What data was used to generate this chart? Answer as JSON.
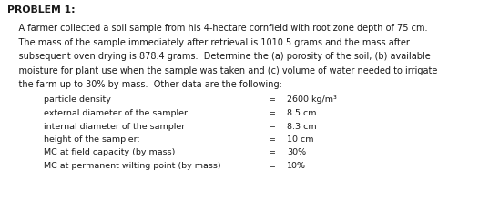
{
  "title": "PROBLEM 1:",
  "lines": [
    "    A farmer collected a soil sample from his 4-hectare cornfield with root zone depth of 75 cm.",
    "    The mass of the sample immediately after retrieval is 1010.5 grams and the mass after",
    "    subsequent oven drying is 878.4 grams.  Determine the (a) porosity of the soil, (b) available",
    "    moisture for plant use when the sample was taken and (c) volume of water needed to irrigate",
    "    the farm up to 30% by mass.  Other data are the following:"
  ],
  "table_rows": [
    [
      "particle density",
      "=",
      "2600 kg/m³"
    ],
    [
      "external diameter of the sampler",
      "=",
      "8.5 cm"
    ],
    [
      "internal diameter of the sampler",
      "=",
      "8.3 cm"
    ],
    [
      "height of the sampler:",
      "=",
      "10 cm"
    ],
    [
      "MC at field capacity (by mass)",
      "=",
      "30%"
    ],
    [
      "MC at permanent wilting point (by mass)",
      "=",
      "10%"
    ]
  ],
  "bg_color": "#ffffff",
  "text_color": "#1a1a1a",
  "font_size_title": 7.8,
  "font_size_body": 7.0,
  "font_size_table": 6.8,
  "fig_width": 5.26,
  "fig_height": 2.2,
  "dpi": 100
}
